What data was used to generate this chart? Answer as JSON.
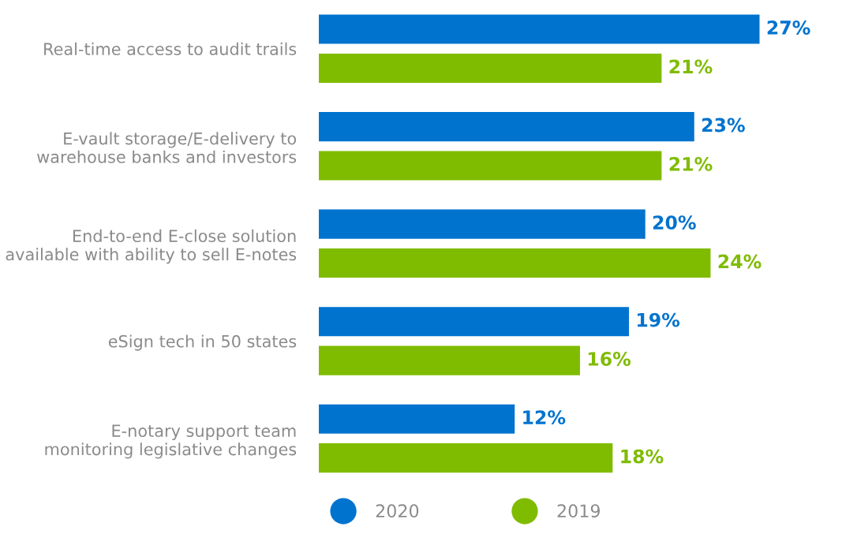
{
  "chart_data": {
    "type": "bar",
    "orientation": "horizontal",
    "categories": [
      "Real-time access to audit trails",
      "E-vault storage/E-delivery to\nwarehouse banks and investors",
      "End-to-end E-close solution\navailable with ability to sell E-notes",
      "eSign tech in 50 states",
      "E-notary support team\nmonitoring legislative changes"
    ],
    "series": [
      {
        "name": "2020",
        "color": "#0073cf",
        "values": [
          27,
          23,
          20,
          19,
          12
        ],
        "value_labels": [
          "27%",
          "23%",
          "20%",
          "19%",
          "12%"
        ]
      },
      {
        "name": "2019",
        "color": "#7fbc00",
        "values": [
          21,
          21,
          24,
          16,
          18
        ],
        "value_labels": [
          "21%",
          "21%",
          "24%",
          "16%",
          "18%"
        ]
      }
    ],
    "legend": "bottom left",
    "tick_labels": "y",
    "grid": false
  }
}
